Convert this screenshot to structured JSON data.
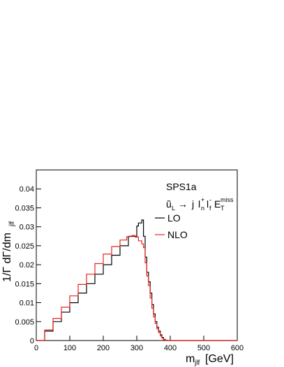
{
  "chart_data": {
    "type": "line",
    "title": "",
    "annotation": {
      "label": "SPS1a",
      "process": "ũL → j ln+ lf- ETmiss",
      "process_parts": {
        "squark": "ũ",
        "squark_sub": "L",
        "arrow": "→",
        "jet": "j",
        "ln": "l",
        "ln_sub": "n",
        "ln_sup": "+",
        "lf": "l",
        "lf_sub": "f",
        "lf_sup": "-",
        "et": "E",
        "et_sub": "T",
        "et_sup": "miss"
      }
    },
    "xlabel": "m",
    "xlabel_sub": "jlf",
    "xlabel_unit": "[GeV]",
    "ylabel": "1/Γ dΓ/dm",
    "ylabel_sub": "jlf",
    "xlim": [
      0,
      600
    ],
    "ylim": [
      0,
      0.045
    ],
    "xticks": [
      0,
      100,
      200,
      300,
      400,
      500,
      600
    ],
    "xtick_labels": [
      "0",
      "100",
      "200",
      "300",
      "400",
      "500",
      "600"
    ],
    "yticks": [
      0,
      0.005,
      0.01,
      0.015,
      0.02,
      0.025,
      0.03,
      0.035,
      0.04
    ],
    "ytick_labels": [
      "0",
      "0.005",
      "0.01",
      "0.015",
      "0.02",
      "0.025",
      "0.03",
      "0.035",
      "0.04"
    ],
    "legend_position": "top-right",
    "series": [
      {
        "name": "LO",
        "color": "#000000",
        "x": [
          0,
          25,
          50,
          75,
          100,
          125,
          150,
          175,
          200,
          225,
          250,
          275,
          300,
          305,
          315,
          320,
          325,
          330,
          335,
          340,
          345,
          350,
          355,
          360,
          365,
          370,
          375,
          380,
          385,
          390,
          400,
          600
        ],
        "y": [
          0,
          0.0025,
          0.005,
          0.0075,
          0.01,
          0.0125,
          0.015,
          0.0175,
          0.02,
          0.0225,
          0.025,
          0.0275,
          0.0302,
          0.031,
          0.0318,
          0.0275,
          0.022,
          0.018,
          0.0155,
          0.0125,
          0.0095,
          0.007,
          0.005,
          0.0035,
          0.0025,
          0.0015,
          0.0008,
          0.0003,
          0.0001,
          0,
          0,
          0
        ]
      },
      {
        "name": "NLO",
        "color": "#e8221f",
        "x": [
          0,
          25,
          50,
          75,
          100,
          125,
          150,
          175,
          200,
          225,
          250,
          270,
          285,
          295,
          305,
          315,
          320,
          325,
          330,
          335,
          340,
          345,
          350,
          355,
          360,
          365,
          370,
          375,
          380,
          385,
          390,
          400,
          600
        ],
        "y": [
          0,
          0.0028,
          0.0058,
          0.0088,
          0.0118,
          0.0148,
          0.0175,
          0.0203,
          0.0228,
          0.0248,
          0.0265,
          0.0274,
          0.0277,
          0.0273,
          0.0263,
          0.0255,
          0.0245,
          0.0205,
          0.017,
          0.0145,
          0.0112,
          0.0085,
          0.0062,
          0.0045,
          0.0031,
          0.0021,
          0.0012,
          0.0006,
          0.0002,
          0.0001,
          0,
          0,
          0
        ]
      }
    ]
  }
}
